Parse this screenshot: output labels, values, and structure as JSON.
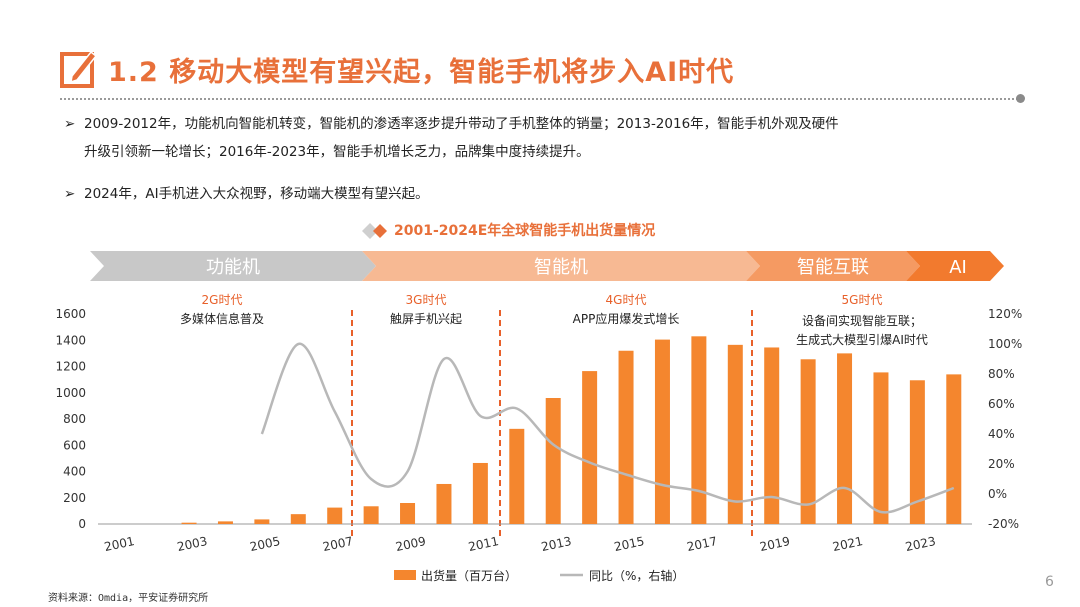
{
  "header": {
    "title": "1.2 移动大模型有望兴起，智能手机将步入AI时代",
    "icon": "pencil-square-icon",
    "accent_color": "#E8703A"
  },
  "bullets": [
    {
      "line1": "2009-2012年，功能机向智能机转变，智能机的渗透率逐步提升带动了手机整体的销量；2013-2016年，智能手机外观及硬件",
      "line2": "升级引领新一轮增长；2016年-2023年，智能手机增长乏力，品牌集中度持续提升。"
    },
    {
      "line1": "2024年，AI手机进入大众视野，移动端大模型有望兴起。"
    }
  ],
  "chart_title": "2001-2024E年全球智能手机出货量情况",
  "phases": [
    "功能机",
    "智能机",
    "智能互联",
    "AI"
  ],
  "eras": [
    {
      "name": "2G时代",
      "desc": [
        "多媒体信息普及"
      ]
    },
    {
      "name": "3G时代",
      "desc": [
        "触屏手机兴起"
      ]
    },
    {
      "name": "4G时代",
      "desc": [
        "APP应用爆发式增长"
      ]
    },
    {
      "name": "5G时代",
      "desc": [
        "设备间实现智能互联；",
        "生成式大模型引爆AI时代"
      ]
    }
  ],
  "chart_data": {
    "type": "bar",
    "categories": [
      "2001",
      "2002",
      "2003",
      "2004",
      "2005",
      "2006",
      "2007",
      "2008",
      "2009",
      "2010",
      "2011",
      "2012",
      "2013",
      "2014",
      "2015",
      "2016",
      "2017",
      "2018",
      "2019",
      "2020",
      "2021",
      "2022",
      "2023",
      "2024E"
    ],
    "x_tick_labels": [
      "2001",
      "2003",
      "2005",
      "2007",
      "2009",
      "2011",
      "2013",
      "2015",
      "2017",
      "2019",
      "2021",
      "2023"
    ],
    "series": [
      {
        "name": "出货量（百万台）",
        "type": "bar",
        "axis": "left",
        "color": "#F4862E",
        "values": [
          0,
          0,
          10,
          20,
          35,
          75,
          125,
          135,
          160,
          305,
          465,
          725,
          960,
          1165,
          1320,
          1405,
          1430,
          1365,
          1345,
          1255,
          1300,
          1155,
          1095,
          1140
        ]
      },
      {
        "name": "同比（%，右轴）",
        "type": "line",
        "axis": "right",
        "color": "#B8B8B8",
        "values": [
          null,
          null,
          null,
          null,
          40,
          100,
          55,
          10,
          15,
          90,
          52,
          57,
          33,
          21,
          13,
          6,
          2,
          -5,
          -2,
          -7,
          4,
          -12,
          -5,
          4
        ]
      }
    ],
    "ylim": [
      0,
      1600
    ],
    "yticks": [
      0,
      200,
      400,
      600,
      800,
      1000,
      1200,
      1400,
      1600
    ],
    "y2lim": [
      -20,
      120
    ],
    "y2ticks": [
      "-20%",
      "0%",
      "20%",
      "40%",
      "60%",
      "80%",
      "100%",
      "120%"
    ],
    "grid": false,
    "legend_position": "bottom"
  },
  "footer": {
    "source": "资料来源：Omdia，平安证券研究所",
    "page": "6"
  }
}
